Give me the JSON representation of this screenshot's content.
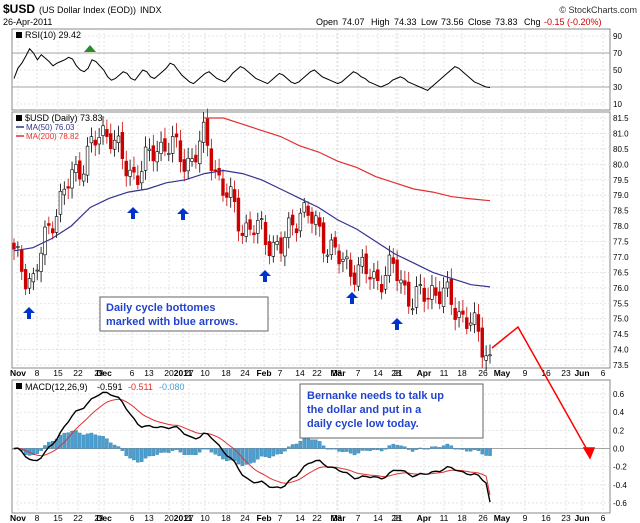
{
  "header": {
    "symbol": "$USD",
    "name": "(US Dollar Index (EOD))",
    "exchange": "INDX",
    "date": "26-Apr-2011",
    "open_label": "Open",
    "open": "74.07",
    "high_label": "High",
    "high": "74.33",
    "low_label": "Low",
    "low": "73.56",
    "close_label": "Close",
    "close": "73.83",
    "chg_label": "Chg",
    "chg": "-0.15 (-0.20%)",
    "credit": "© StockCharts.com"
  },
  "rsi": {
    "label": "RSI(10) 29.42",
    "ticks": [
      90,
      70,
      50,
      30,
      10
    ],
    "values": [
      40,
      52,
      58,
      66,
      75,
      70,
      62,
      68,
      64,
      60,
      55,
      58,
      60,
      62,
      65,
      63,
      55,
      50,
      48,
      52,
      62,
      60,
      55,
      50,
      42,
      38,
      40,
      44,
      48,
      46,
      40,
      38,
      44,
      50,
      48,
      42,
      40,
      44,
      48,
      52,
      58,
      56,
      50,
      44,
      40,
      36,
      34,
      38,
      42,
      46,
      48,
      44,
      40,
      38,
      36,
      40,
      46,
      50,
      54,
      52,
      48,
      44,
      40,
      38,
      36,
      34,
      38,
      42,
      46,
      44,
      40,
      36,
      34,
      36,
      40,
      44,
      48,
      50,
      46,
      42,
      40,
      38,
      36,
      34,
      36,
      40,
      44,
      48,
      46,
      42,
      40,
      36,
      34,
      32,
      30,
      32,
      34,
      38,
      40,
      42,
      40,
      36,
      34,
      32,
      30,
      28,
      26,
      30,
      34,
      38,
      42,
      46,
      50,
      54,
      52,
      48,
      44,
      40,
      36,
      34,
      32,
      30,
      29.42
    ]
  },
  "price": {
    "title": "$USD (Daily) 73.83",
    "ma50_label": "MA(50) 76.03",
    "ma200_label": "MA(200) 78.82",
    "ticks": [
      "81.5",
      "81.0",
      "80.5",
      "80.0",
      "79.5",
      "79.0",
      "78.5",
      "78.0",
      "77.5",
      "77.0",
      "76.5",
      "76.0",
      "75.5",
      "75.0",
      "74.5",
      "74.0",
      "73.5"
    ],
    "x_labels": [
      "Nov",
      "8",
      "15",
      "22",
      "29",
      "Dec",
      "6",
      "13",
      "20",
      "27",
      "2011",
      "10",
      "18",
      "24",
      "Feb",
      "7",
      "14",
      "22",
      "28",
      "Mar",
      "7",
      "14",
      "21",
      "28",
      "Apr",
      "11",
      "18",
      "26",
      "May",
      "9",
      "16",
      "23",
      "Jun",
      "6"
    ],
    "annotations": {
      "cycle_note": "Daily cycle bottomes marked with blue arrows.",
      "bernanke_note": "Bernanke needs to talk up the dollar and put in a daily cycle low today."
    }
  },
  "macd": {
    "label": "MACD(12,26,9)",
    "macd_val": "-0.591",
    "signal_val": "-0.511",
    "hist_val": "-0.080",
    "ticks": [
      "0.6",
      "0.4",
      "0.2",
      "0.0",
      "-0.2",
      "-0.4",
      "-0.6"
    ]
  },
  "colors": {
    "bull": "#000000",
    "bear": "#cc0000",
    "ma50": "#33338c",
    "ma200": "#e03030",
    "rsi": "#000000",
    "macd": "#000000",
    "signal": "#e03030",
    "hist": "#4a9fd0",
    "arrow": "#0033cc",
    "note_text": "#2244cc",
    "red_arrow": "#ff0000"
  },
  "chart_data": {
    "type": "line",
    "title": "$USD (Daily) 73.83",
    "x": [
      "Nov 1",
      "Nov 8",
      "Nov 15",
      "Nov 22",
      "Nov 29",
      "Dec 6",
      "Dec 13",
      "Dec 20",
      "Dec 27",
      "Jan 3",
      "Jan 10",
      "Jan 18",
      "Jan 24",
      "Feb 1",
      "Feb 7",
      "Feb 14",
      "Feb 22",
      "Feb 28",
      "Mar 7",
      "Mar 14",
      "Mar 21",
      "Mar 28",
      "Apr 4",
      "Apr 11",
      "Apr 18",
      "Apr 26"
    ],
    "series": [
      {
        "name": "$USD",
        "values": [
          77.0,
          76.2,
          78.3,
          79.5,
          80.5,
          81.2,
          79.6,
          80.1,
          80.8,
          80.0,
          80.8,
          79.2,
          78.0,
          77.8,
          77.2,
          78.6,
          77.9,
          76.9,
          76.6,
          76.3,
          76.6,
          75.5,
          76.0,
          75.5,
          74.8,
          73.83
        ]
      },
      {
        "name": "MA(50) 76.03",
        "values": [
          77.2,
          77.3,
          77.6,
          78.0,
          78.6,
          78.9,
          79.1,
          79.2,
          79.4,
          79.5,
          79.7,
          79.8,
          79.7,
          79.5,
          79.2,
          78.9,
          78.6,
          78.2,
          77.9,
          77.5,
          77.1,
          76.8,
          76.5,
          76.3,
          76.1,
          76.03
        ]
      },
      {
        "name": "MA(200) 78.82",
        "values": [
          null,
          null,
          null,
          null,
          null,
          null,
          null,
          null,
          null,
          null,
          81.6,
          81.5,
          81.3,
          81.1,
          80.9,
          80.6,
          80.4,
          80.1,
          79.9,
          79.6,
          79.4,
          79.2,
          79.1,
          78.95,
          78.88,
          78.82
        ]
      }
    ],
    "ylim": [
      73.5,
      81.5
    ],
    "xlabel": "",
    "ylabel": ""
  }
}
